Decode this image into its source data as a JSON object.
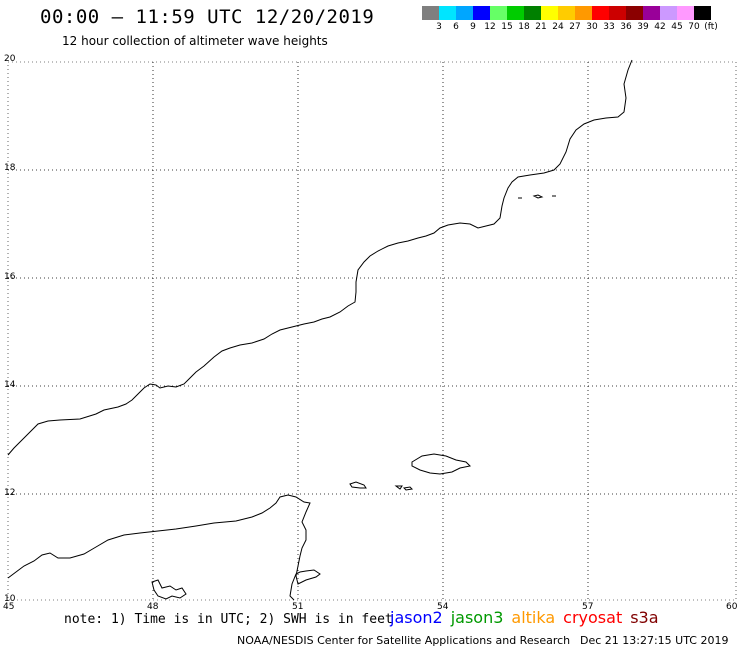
{
  "header": {
    "title": "00:00 – 11:59 UTC 12/20/2019",
    "subtitle": "12 hour collection of altimeter wave heights"
  },
  "colorbar": {
    "colors": [
      "#7f7f7f",
      "#00e5ff",
      "#00a6ff",
      "#0000ff",
      "#66ff66",
      "#00cc00",
      "#008000",
      "#ffff00",
      "#ffcc00",
      "#ff9900",
      "#ff0000",
      "#cc0000",
      "#8b0000",
      "#990099",
      "#cc99ff",
      "#ff99ff",
      "#000000"
    ],
    "labels": [
      "3",
      "6",
      "9",
      "12",
      "15",
      "18",
      "21",
      "24",
      "27",
      "30",
      "33",
      "36",
      "39",
      "42",
      "45",
      "70",
      "(ft)"
    ]
  },
  "map": {
    "lat_labels": [
      "20",
      "18",
      "16",
      "14",
      "12",
      "10"
    ],
    "lon_labels": [
      "45",
      "48",
      "51",
      "54",
      "57",
      "60"
    ]
  },
  "footer": {
    "note": "note: 1) Time is in UTC; 2) SWH is in feet",
    "satellites": [
      {
        "name": "jason2",
        "color": "#0000ff"
      },
      {
        "name": "jason3",
        "color": "#009900"
      },
      {
        "name": "altika",
        "color": "#ff9900"
      },
      {
        "name": "cryosat",
        "color": "#ff0000"
      },
      {
        "name": "s3a",
        "color": "#800000"
      }
    ],
    "credit": "NOAA/NESDIS Center for Satellite Applications and Research",
    "timestamp": "Dec 21 13:27:15 UTC 2019"
  }
}
